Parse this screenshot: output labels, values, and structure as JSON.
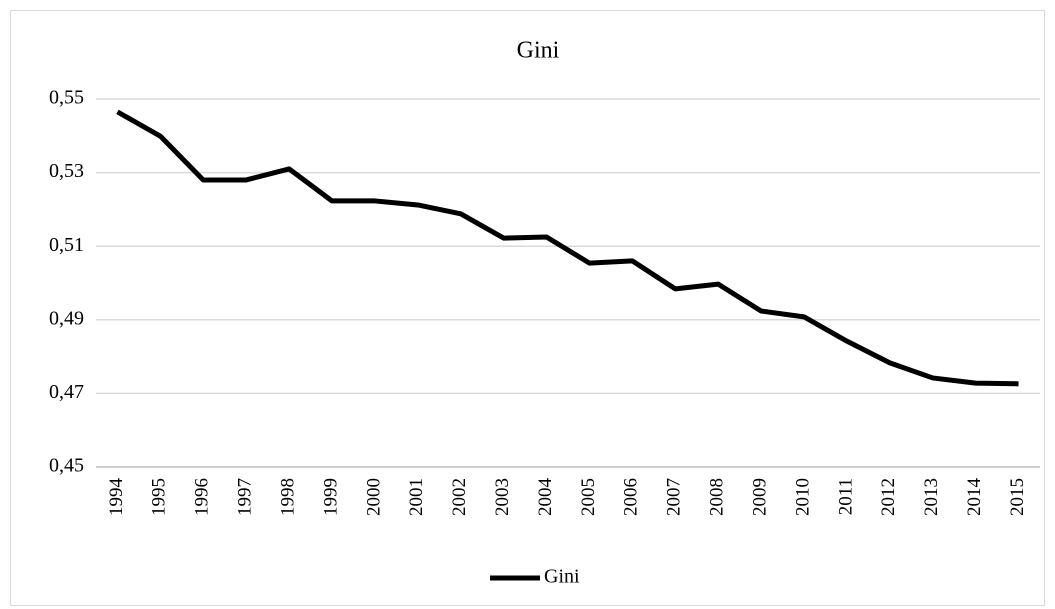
{
  "chart_data": {
    "type": "line",
    "title": "Gini",
    "categories": [
      "1994",
      "1995",
      "1996",
      "1997",
      "1998",
      "1999",
      "2000",
      "2001",
      "2002",
      "2003",
      "2004",
      "2005",
      "2006",
      "2007",
      "2008",
      "2009",
      "2010",
      "2011",
      "2012",
      "2013",
      "2014",
      "2015"
    ],
    "series": [
      {
        "name": "Gini",
        "color": "#000000",
        "values": [
          0.5465,
          0.5399,
          0.528,
          0.528,
          0.531,
          0.5223,
          0.5223,
          0.5212,
          0.5188,
          0.5122,
          0.5125,
          0.5054,
          0.506,
          0.4984,
          0.4997,
          0.4924,
          0.4908,
          0.4842,
          0.4783,
          0.4742,
          0.4728,
          0.4726
        ]
      }
    ],
    "ylim": [
      0.45,
      0.55
    ],
    "yticks": [
      {
        "value": 0.45,
        "label": "0,45"
      },
      {
        "value": 0.47,
        "label": "0,47"
      },
      {
        "value": 0.49,
        "label": "0,49"
      },
      {
        "value": 0.51,
        "label": "0,51"
      },
      {
        "value": 0.53,
        "label": "0,53"
      },
      {
        "value": 0.55,
        "label": "0,55"
      }
    ],
    "grid": true,
    "legend": "bottom"
  }
}
